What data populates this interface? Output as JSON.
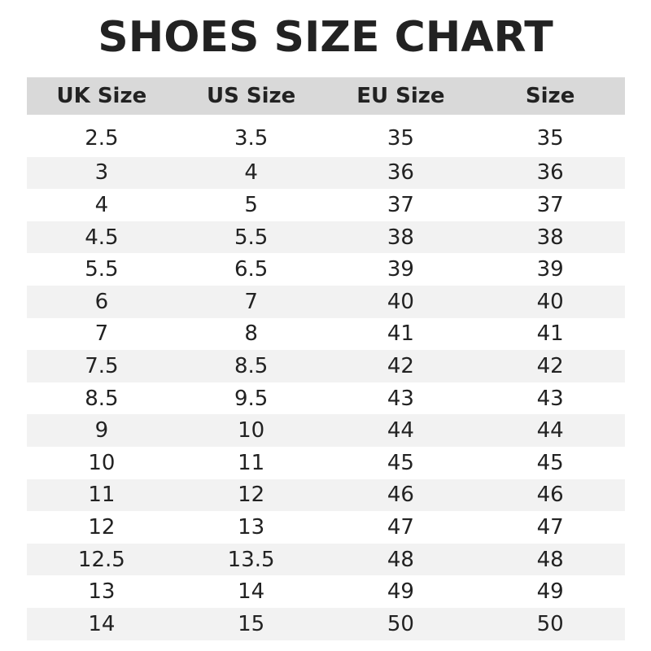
{
  "title": "SHOES SIZE CHART",
  "table": {
    "header": [
      "UK Size",
      "US Size",
      "EU Size",
      "Size"
    ],
    "rows": [
      [
        "2.5",
        "3.5",
        "35",
        "35"
      ],
      [
        "3",
        "4",
        "36",
        "36"
      ],
      [
        "4",
        "5",
        "37",
        "37"
      ],
      [
        "4.5",
        "5.5",
        "38",
        "38"
      ],
      [
        "5.5",
        "6.5",
        "39",
        "39"
      ],
      [
        "6",
        "7",
        "40",
        "40"
      ],
      [
        "7",
        "8",
        "41",
        "41"
      ],
      [
        "7.5",
        "8.5",
        "42",
        "42"
      ],
      [
        "8.5",
        "9.5",
        "43",
        "43"
      ],
      [
        "9",
        "10",
        "44",
        "44"
      ],
      [
        "10",
        "11",
        "45",
        "45"
      ],
      [
        "11",
        "12",
        "46",
        "46"
      ],
      [
        "12",
        "13",
        "47",
        "47"
      ],
      [
        "12.5",
        "13.5",
        "48",
        "48"
      ],
      [
        "13",
        "14",
        "49",
        "49"
      ],
      [
        "14",
        "15",
        "50",
        "50"
      ]
    ]
  }
}
